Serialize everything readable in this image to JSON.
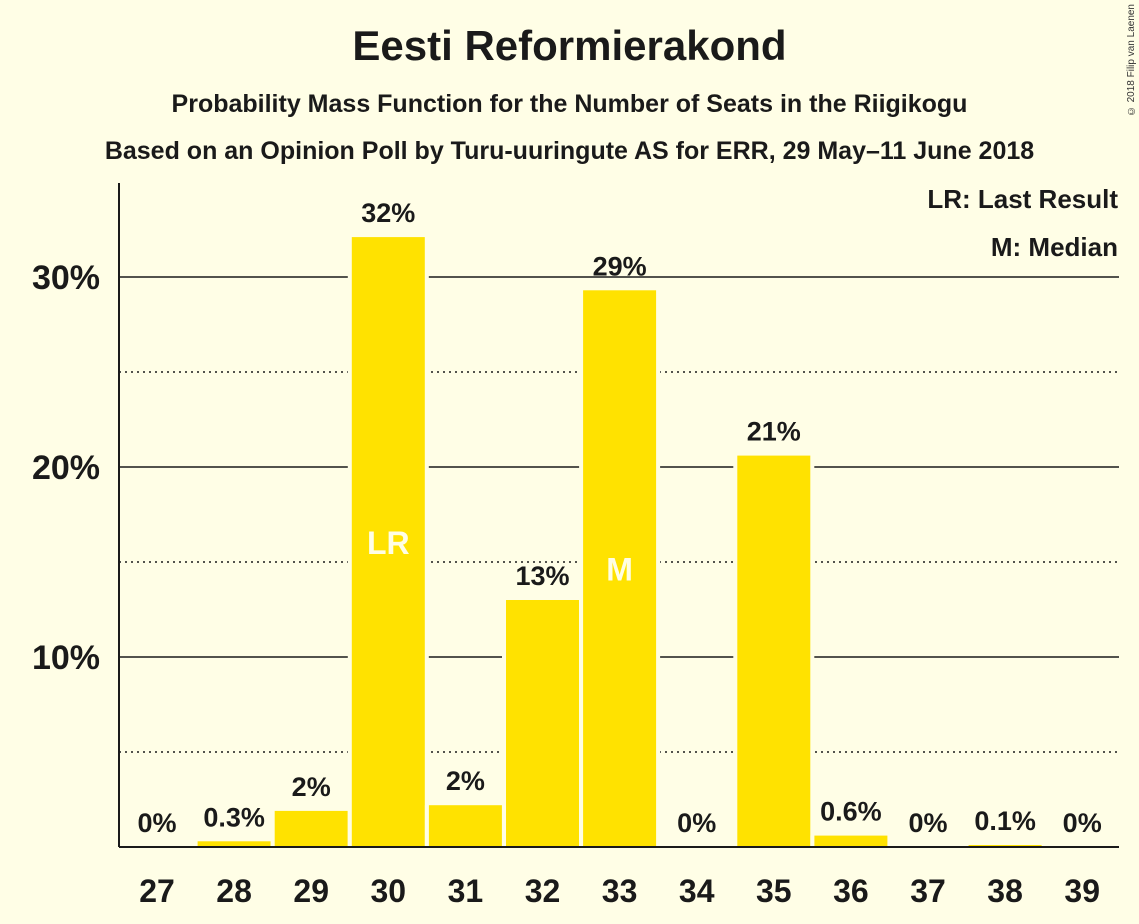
{
  "title": "Eesti Reformierakond",
  "subtitle1": "Probability Mass Function for the Number of Seats in the Riigikogu",
  "subtitle2": "Based on an Opinion Poll by Turu-uuringute AS for ERR, 29 May–11 June 2018",
  "copyright": "© 2018 Filip van Laenen",
  "legend": {
    "last_result": "LR: Last Result",
    "median": "M: Median"
  },
  "colors": {
    "background": "#FFFEE6",
    "bar": "#FFE200",
    "marker_text": "#FFFEE6",
    "axis": "#1a1a1a"
  },
  "chart_data": {
    "type": "bar",
    "categories": [
      "27",
      "28",
      "29",
      "30",
      "31",
      "32",
      "33",
      "34",
      "35",
      "36",
      "37",
      "38",
      "39"
    ],
    "values": [
      0,
      0.3,
      1.9,
      32.1,
      2.2,
      13.0,
      29.3,
      0,
      20.6,
      0.6,
      0,
      0.1,
      0
    ],
    "data_labels": [
      "0%",
      "0.3%",
      "2%",
      "32%",
      "2%",
      "13%",
      "29%",
      "0%",
      "21%",
      "0.6%",
      "0%",
      "0.1%",
      "0%"
    ],
    "markers": {
      "30": "LR",
      "33": "M"
    },
    "yticks": [
      10,
      20,
      30
    ],
    "ytick_labels": [
      "10%",
      "20%",
      "30%"
    ],
    "minor_gridlines": [
      5,
      15,
      25
    ],
    "ylim": [
      0,
      35
    ],
    "grid": true,
    "legend_position": "top-right"
  }
}
